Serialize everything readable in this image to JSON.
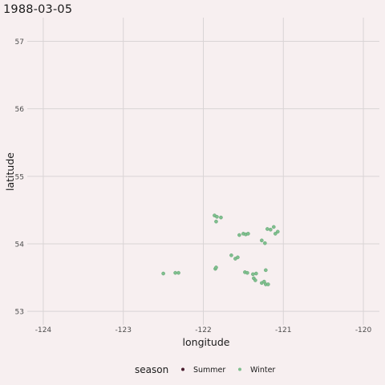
{
  "chart_data": {
    "type": "scatter",
    "title": "1988-03-05",
    "xlabel": "longitude",
    "ylabel": "latitude",
    "xlim": [
      -124.2,
      -119.8
    ],
    "ylim": [
      52.8,
      57.35
    ],
    "x_ticks": [
      -124,
      -123,
      -122,
      -121,
      -120
    ],
    "x_tick_labels": [
      "-124",
      "-123",
      "-122",
      "-121",
      "-120"
    ],
    "y_ticks": [
      53,
      54,
      55,
      56,
      57
    ],
    "y_tick_labels": [
      "53",
      "54",
      "55",
      "56",
      "57"
    ],
    "grid": true,
    "legend": {
      "title": "season",
      "position": "bottom",
      "entries": [
        {
          "label": "Summer",
          "color": "#4a1c2e"
        },
        {
          "label": "Winter",
          "color": "#7fbf8e"
        }
      ]
    },
    "series": [
      {
        "name": "Summer",
        "color": "#4a1c2e",
        "points": []
      },
      {
        "name": "Winter",
        "color": "#7fbf8e",
        "points": [
          [
            -121.86,
            54.42
          ],
          [
            -121.83,
            54.4
          ],
          [
            -121.78,
            54.39
          ],
          [
            -121.84,
            54.33
          ],
          [
            -121.55,
            54.13
          ],
          [
            -121.5,
            54.15
          ],
          [
            -121.47,
            54.14
          ],
          [
            -121.44,
            54.15
          ],
          [
            -121.2,
            54.22
          ],
          [
            -121.16,
            54.21
          ],
          [
            -121.12,
            54.25
          ],
          [
            -121.1,
            54.15
          ],
          [
            -121.07,
            54.18
          ],
          [
            -121.27,
            54.05
          ],
          [
            -121.23,
            54.01
          ],
          [
            -121.65,
            53.83
          ],
          [
            -121.6,
            53.78
          ],
          [
            -121.57,
            53.8
          ],
          [
            -121.85,
            53.63
          ],
          [
            -121.84,
            53.65
          ],
          [
            -121.48,
            53.58
          ],
          [
            -121.45,
            53.57
          ],
          [
            -121.38,
            53.55
          ],
          [
            -121.34,
            53.56
          ],
          [
            -121.37,
            53.49
          ],
          [
            -121.35,
            53.46
          ],
          [
            -121.22,
            53.61
          ],
          [
            -121.27,
            53.42
          ],
          [
            -121.24,
            53.44
          ],
          [
            -121.22,
            53.4
          ],
          [
            -121.19,
            53.4
          ],
          [
            -122.5,
            53.56
          ],
          [
            -122.35,
            53.57
          ],
          [
            -122.31,
            53.57
          ]
        ]
      }
    ]
  }
}
